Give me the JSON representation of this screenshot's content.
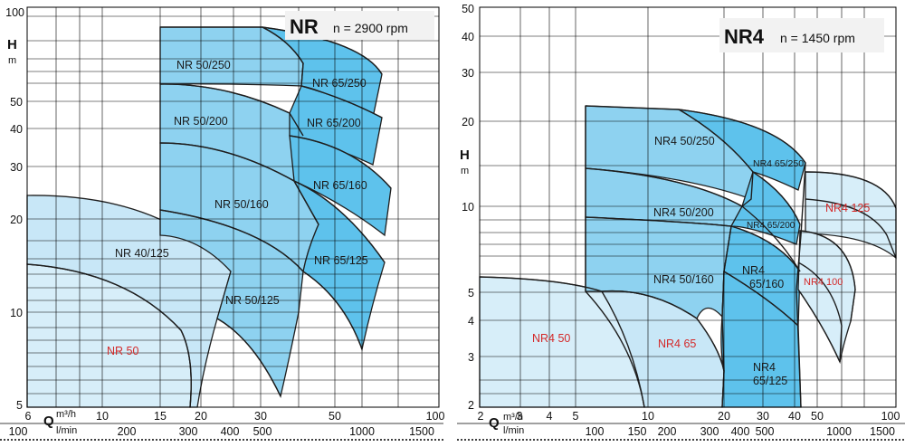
{
  "chart_data": [
    {
      "type": "area",
      "title": "NR",
      "subtitle": "n = 2900 rpm",
      "ylabel": "H",
      "yunit": "m",
      "xlabel": "Q",
      "xunit_top": "m³/h",
      "xunit_bottom": "l/min",
      "y_scale": "log",
      "x_scale": "log",
      "y_ticks": [
        "5",
        "10",
        "20",
        "30",
        "40",
        "50",
        "100"
      ],
      "x_ticks_m3h": [
        "6",
        "10",
        "15",
        "20",
        "30",
        "50",
        "100"
      ],
      "x_ticks_lmin": [
        "100",
        "200",
        "300",
        "400",
        "500",
        "1000",
        "1500"
      ],
      "zones": [
        {
          "name": "NR 50",
          "color": "#d42a2a"
        },
        {
          "name": "NR 40/125"
        },
        {
          "name": "NR 50/250"
        },
        {
          "name": "NR 50/200"
        },
        {
          "name": "NR 50/160"
        },
        {
          "name": "NR 50/125"
        },
        {
          "name": "NR 65/250"
        },
        {
          "name": "NR 65/200"
        },
        {
          "name": "NR 65/160"
        },
        {
          "name": "NR 65/125"
        }
      ]
    },
    {
      "type": "area",
      "title": "NR4",
      "subtitle": "n = 1450 rpm",
      "ylabel": "H",
      "yunit": "m",
      "xlabel": "Q",
      "xunit_top": "m³/h",
      "xunit_bottom": "l/min",
      "y_scale": "log",
      "x_scale": "log",
      "y_ticks": [
        "2",
        "3",
        "4",
        "5",
        "10",
        "20",
        "30",
        "40",
        "50"
      ],
      "x_ticks_m3h": [
        "2",
        "3",
        "4",
        "5",
        "10",
        "20",
        "30",
        "40",
        "50",
        "100"
      ],
      "x_ticks_lmin": [
        "100",
        "150",
        "200",
        "300",
        "400",
        "500",
        "1000",
        "1500"
      ],
      "zones": [
        {
          "name": "NR4 50",
          "color": "#d42a2a"
        },
        {
          "name": "NR4 65",
          "color": "#d42a2a"
        },
        {
          "name": "NR4 50/250"
        },
        {
          "name": "NR4 50/200"
        },
        {
          "name": "NR4 50/160"
        },
        {
          "name": "NR4 65/250"
        },
        {
          "name": "NR4 65/200"
        },
        {
          "name": "NR4\n65/160"
        },
        {
          "name": "NR4\n65/125"
        },
        {
          "name": "NR4 125",
          "color": "#d42a2a"
        },
        {
          "name": "NR4 100",
          "color": "#d42a2a"
        }
      ]
    }
  ]
}
